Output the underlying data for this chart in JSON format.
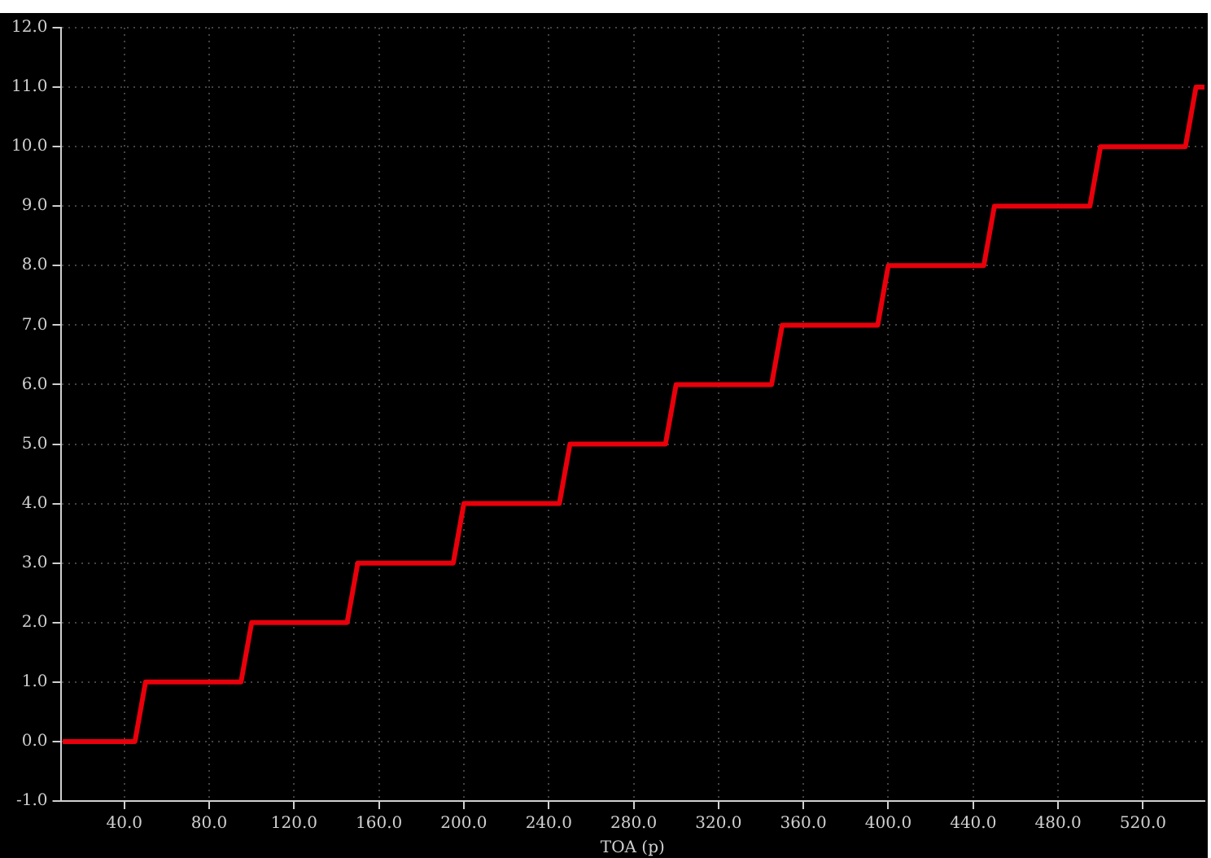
{
  "chart_data": {
    "type": "line",
    "xlabel": "TOA (p)",
    "x": [
      11,
      45,
      50,
      95,
      100,
      145,
      150,
      195,
      200,
      245,
      250,
      295,
      300,
      345,
      350,
      395,
      400,
      445,
      450,
      495,
      500,
      540,
      545,
      549
    ],
    "series": [
      {
        "color": "#e8000b",
        "values": [
          0,
          0,
          1,
          1,
          2,
          2,
          3,
          3,
          4,
          4,
          5,
          5,
          6,
          6,
          7,
          7,
          8,
          8,
          9,
          9,
          10,
          10,
          11,
          11
        ]
      }
    ],
    "xlim": [
      10,
      549
    ],
    "xticks": [
      {
        "value": 40,
        "label": "40.0"
      },
      {
        "value": 80,
        "label": "80.0"
      },
      {
        "value": 120,
        "label": "120.0"
      },
      {
        "value": 160,
        "label": "160.0"
      },
      {
        "value": 200,
        "label": "200.0"
      },
      {
        "value": 240,
        "label": "240.0"
      },
      {
        "value": 280,
        "label": "280.0"
      },
      {
        "value": 320,
        "label": "320.0"
      },
      {
        "value": 360,
        "label": "360.0"
      },
      {
        "value": 400,
        "label": "400.0"
      },
      {
        "value": 440,
        "label": "440.0"
      },
      {
        "value": 480,
        "label": "480.0"
      },
      {
        "value": 520,
        "label": "520.0"
      }
    ],
    "ylim": [
      -1,
      12
    ],
    "yticks": [
      {
        "value": -1,
        "label": "-1.0"
      },
      {
        "value": 0,
        "label": "0.0"
      },
      {
        "value": 1,
        "label": "1.0"
      },
      {
        "value": 2,
        "label": "2.0"
      },
      {
        "value": 3,
        "label": "3.0"
      },
      {
        "value": 4,
        "label": "4.0"
      },
      {
        "value": 5,
        "label": "5.0"
      },
      {
        "value": 6,
        "label": "6.0"
      },
      {
        "value": 7,
        "label": "7.0"
      },
      {
        "value": 8,
        "label": "8.0"
      },
      {
        "value": 9,
        "label": "9.0"
      },
      {
        "value": 10,
        "label": "10.0"
      },
      {
        "value": 11,
        "label": "11.0"
      },
      {
        "value": 12,
        "label": "12.0"
      }
    ],
    "grid": true,
    "legend": false,
    "marker": "none",
    "line_style": "solid"
  }
}
